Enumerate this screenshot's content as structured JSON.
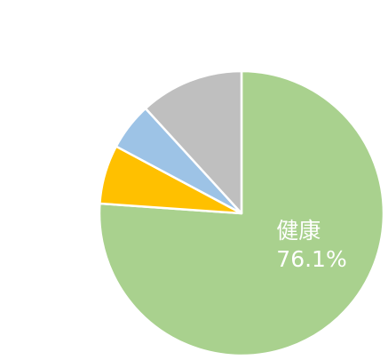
{
  "chart_data": {
    "type": "pie",
    "start_angle": "12 o'clock",
    "direction": "clockwise",
    "slices": [
      {
        "label": "健康",
        "value": 76.1,
        "display_value": "76.1%",
        "color": "#A9D18E",
        "show_label": true
      },
      {
        "label": "",
        "value": 6.7,
        "display_value": "",
        "color": "#FFC000",
        "show_label": false
      },
      {
        "label": "",
        "value": 5.4,
        "display_value": "",
        "color": "#9DC3E6",
        "show_label": false
      },
      {
        "label": "",
        "value": 11.8,
        "display_value": "",
        "color": "#BFBFBF",
        "show_label": false
      }
    ]
  }
}
